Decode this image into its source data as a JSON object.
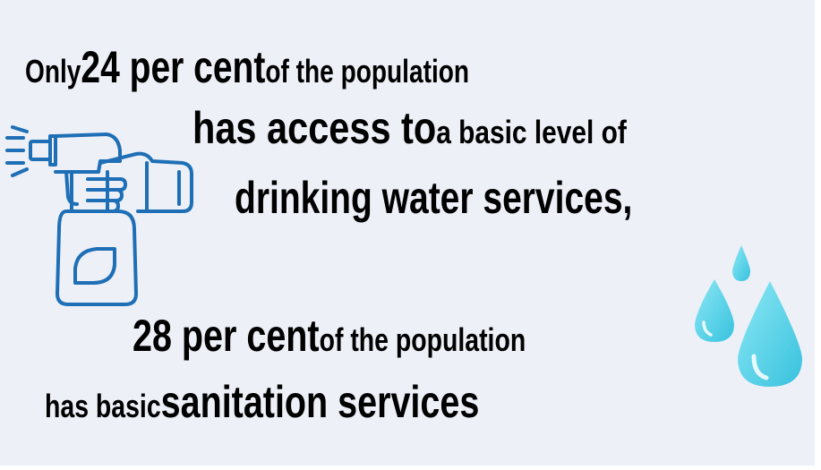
{
  "lines": [
    {
      "parts": [
        {
          "text": "Only ",
          "size": "sm"
        },
        {
          "text": "24 per cent",
          "size": "lg"
        },
        {
          "text": " of the population",
          "size": "sm"
        }
      ]
    },
    {
      "parts": [
        {
          "text": "has access to",
          "size": "lg"
        },
        {
          "text": " a basic level of",
          "size": "sm"
        }
      ]
    },
    {
      "parts": [
        {
          "text": "drinking water services,",
          "size": "lg"
        }
      ]
    },
    {
      "parts": [
        {
          "text": "28 per cent",
          "size": "lg"
        },
        {
          "text": " of the population",
          "size": "sm"
        }
      ]
    },
    {
      "parts": [
        {
          "text": "has basic ",
          "size": "sm"
        },
        {
          "text": "sanitation services",
          "size": "lg"
        }
      ]
    }
  ],
  "icons": {
    "spray": "spray-bottle-icon",
    "drops": "water-drops-icon"
  },
  "colors": {
    "background": "#eef0f8",
    "text": "#000000",
    "spray_bottle": "#1e6fb5",
    "water_drop": "#4fd0e6"
  }
}
